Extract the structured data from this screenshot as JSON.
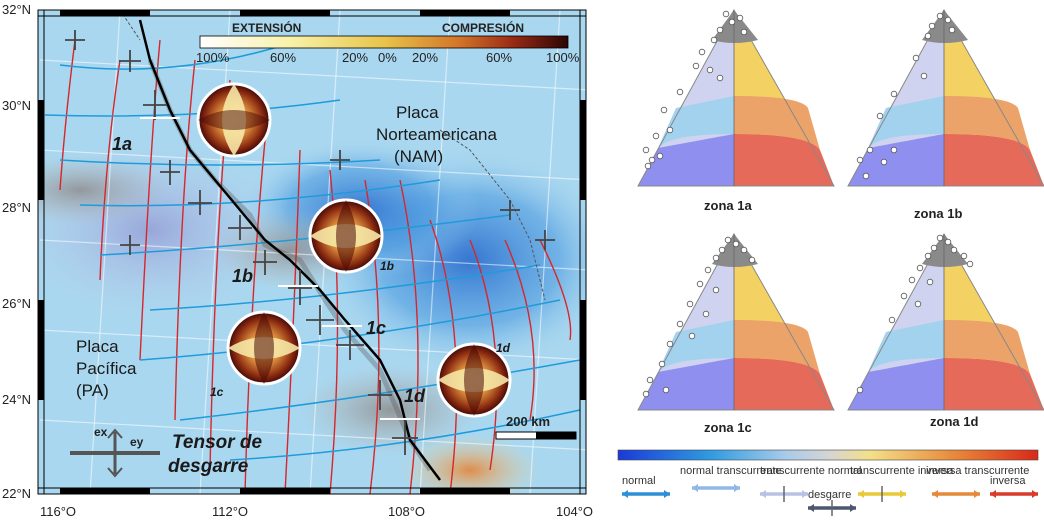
{
  "map": {
    "lat_labels": [
      "32°N",
      "30°N",
      "28°N",
      "26°N",
      "24°N",
      "22°N"
    ],
    "lon_labels": [
      "116°O",
      "112°O",
      "108°O",
      "104°O"
    ],
    "colorbar": {
      "left_title": "EXTENSIÓN",
      "right_title": "COMPRESIÓN",
      "ticks": [
        "100%",
        "60%",
        "20%",
        "0%",
        "20%",
        "60%",
        "100%"
      ]
    },
    "labels": {
      "nam": [
        "Placa",
        "Norteamericana",
        "(NAM)"
      ],
      "pa": [
        "Placa",
        "Pacífica",
        "(PA)"
      ],
      "zones": [
        "1a",
        "1b",
        "1c",
        "1d"
      ],
      "zones_small": [
        "1b",
        "1c",
        "1d"
      ],
      "tensor": [
        "Tensor de",
        "desgarre"
      ],
      "ex": "ex",
      "ey": "ey",
      "scale": "200 km"
    }
  },
  "triangles": [
    {
      "caption": "zona 1a"
    },
    {
      "caption": "zona 1b"
    },
    {
      "caption": "zona 1c"
    },
    {
      "caption": "zona 1d"
    }
  ],
  "legend": {
    "items": [
      "normal",
      "normal transcurrente",
      "transcurrente normal",
      "desgarre",
      "transcurrente inversa",
      "inversa transcurrente",
      "inversa"
    ],
    "colors": [
      "#2f8fd6",
      "#8fb8e6",
      "#b9c2e4",
      "#4c5670",
      "#e8c93a",
      "#e48a3a",
      "#d93a2a"
    ]
  }
}
